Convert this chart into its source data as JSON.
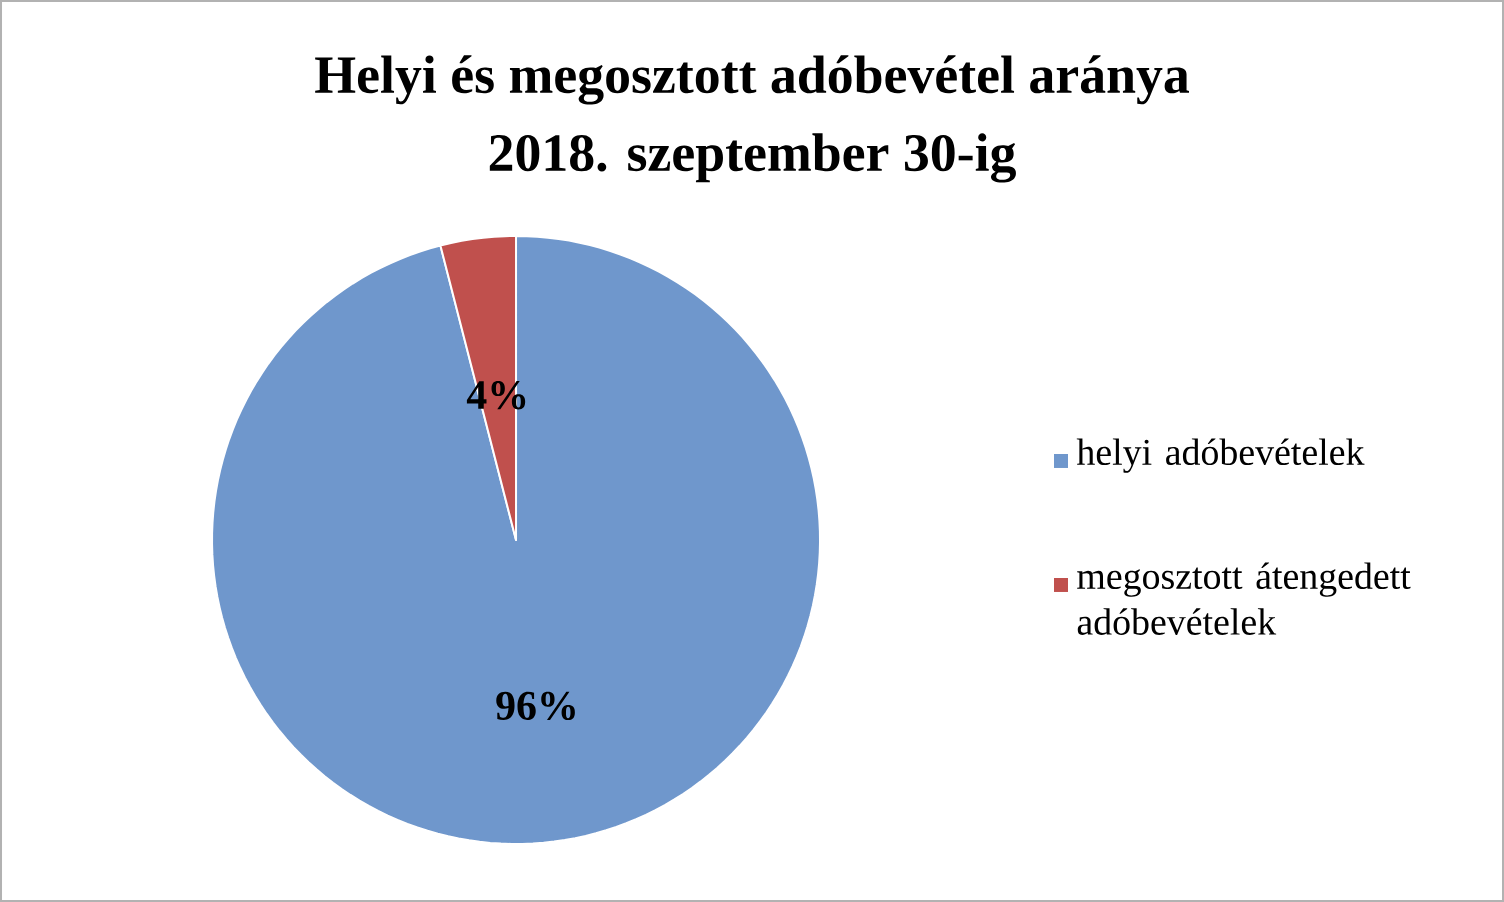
{
  "chart_data": {
    "type": "pie",
    "title": "Helyi és megosztott adóbevétel aránya",
    "subtitle": "2018. szeptember 30-ig",
    "categories": [
      "helyi adóbevételek",
      "megosztott átengedett adóbevételek"
    ],
    "values": [
      96,
      4
    ],
    "colors": [
      "#6f97cc",
      "#c0504d"
    ],
    "value_labels": [
      "96%",
      "4%"
    ],
    "legend": "right"
  }
}
